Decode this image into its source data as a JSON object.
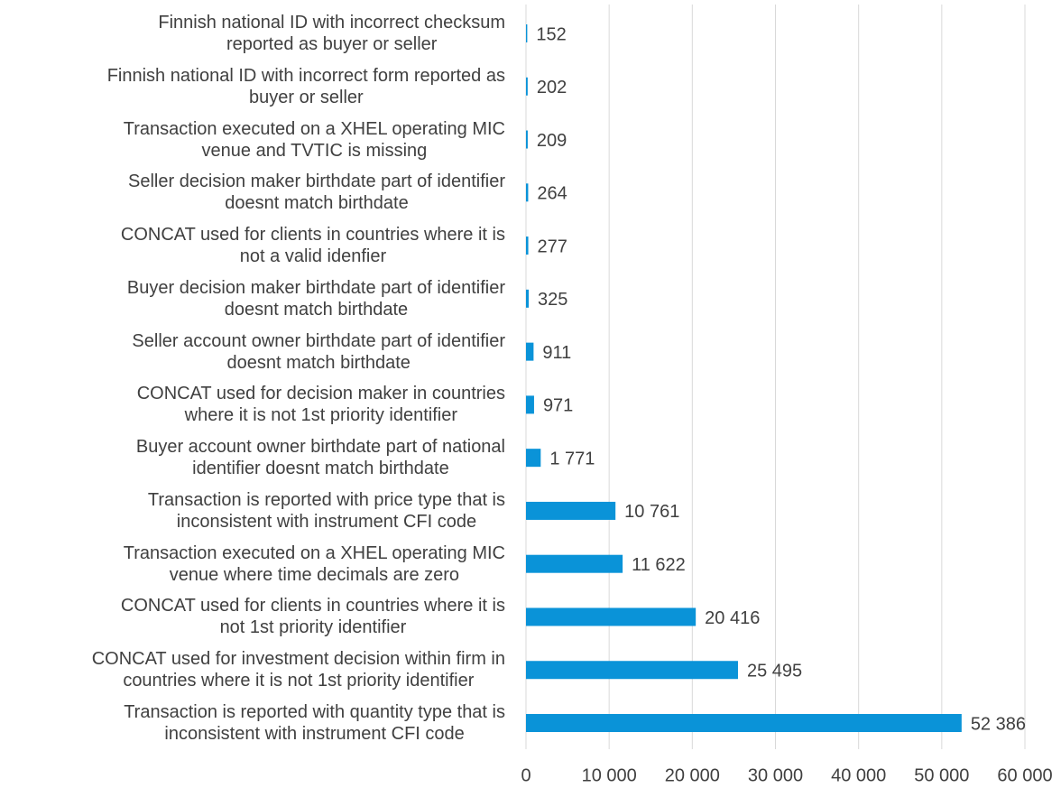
{
  "chart_data": {
    "type": "barh",
    "categories": [
      "Finnish national ID with incorrect checksum\nreported as buyer or seller",
      "Finnish national ID with incorrect form reported as\nbuyer or seller",
      "Transaction executed on a XHEL operating MIC\nvenue and TVTIC is missing",
      "Seller decision maker birthdate part of identifier\ndoesnt match birthdate",
      "CONCAT used for clients in countries where it is\nnot a valid idenfier",
      "Buyer decision maker birthdate part of identifier\ndoesnt match birthdate",
      "Seller account owner birthdate part of identifier\ndoesnt match birthdate",
      "CONCAT used for decision maker in countries\nwhere it is not 1st priority identifier",
      "Buyer account owner birthdate part of national\nidentifier doesnt match birthdate",
      "Transaction is reported with price type that is\ninconsistent with instrument CFI code",
      "Transaction executed on a XHEL operating MIC\nvenue where time decimals are zero",
      "CONCAT used for clients in countries where it is\nnot 1st priority identifier",
      "CONCAT used for investment decision within firm in\ncountries where it is not 1st priority identifier",
      "Transaction is reported with quantity type that is\ninconsistent with instrument CFI code"
    ],
    "values": [
      152,
      202,
      209,
      264,
      277,
      325,
      911,
      971,
      1771,
      10761,
      11622,
      20416,
      25495,
      52386
    ],
    "value_labels": [
      "152",
      "202",
      "209",
      "264",
      "277",
      "325",
      "911",
      "971",
      "1 771",
      "10 761",
      "11 622",
      "20 416",
      "25 495",
      "52 386"
    ],
    "color": "#0a93d8",
    "xlim": [
      0,
      60000
    ],
    "xticks": [
      0,
      {
        "value": 10000,
        "label": "10 000"
      },
      {
        "value": 20000,
        "label": "20 000"
      },
      {
        "value": 30000,
        "label": "30 000"
      },
      {
        "value": 40000,
        "label": "40 000"
      },
      {
        "value": 50000,
        "label": "50 000"
      },
      {
        "value": 60000,
        "label": "60 000"
      }
    ],
    "grid": true
  }
}
